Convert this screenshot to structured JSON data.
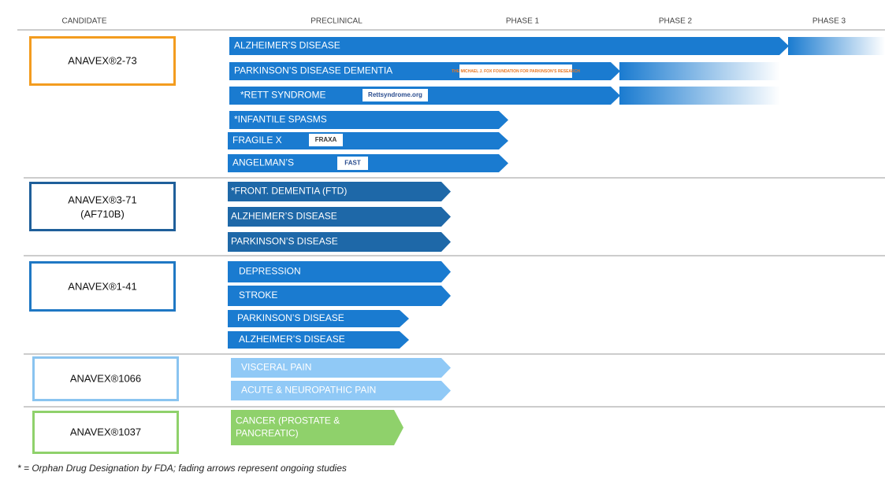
{
  "header": {
    "columns": [
      "CANDIDATE",
      "PRECLINICAL",
      "PHASE 1",
      "PHASE 2",
      "PHASE 3"
    ]
  },
  "candidates": [
    {
      "name": [
        "ANAVEX®2-73"
      ],
      "programs": [
        {
          "label": [
            "ALZHEIMER’S DISEASE"
          ]
        },
        {
          "label": [
            "PARKINSON’S DISEASE DEMENTIA"
          ],
          "partner": "THE MICHAEL J. FOX FOUNDATION FOR PARKINSON’S RESEARCH"
        },
        {
          "label": [
            "*RETT SYNDROME"
          ],
          "partner": "Rettsyndrome.org"
        },
        {
          "label": [
            "*INFANTILE SPASMS"
          ]
        },
        {
          "label": [
            "FRAGILE X"
          ],
          "partner": "FRAXA"
        },
        {
          "label": [
            "ANGELMAN’S"
          ],
          "partner": "FAST"
        }
      ]
    },
    {
      "name": [
        "ANAVEX®3-71",
        "(AF710B)"
      ],
      "programs": [
        {
          "label": [
            "*FRONT. DEMENTIA (FTD)"
          ]
        },
        {
          "label": [
            "ALZHEIMER’S DISEASE"
          ]
        },
        {
          "label": [
            "PARKINSON’S DISEASE"
          ]
        }
      ]
    },
    {
      "name": [
        "ANAVEX®1-41"
      ],
      "programs": [
        {
          "label": [
            "DEPRESSION"
          ]
        },
        {
          "label": [
            "STROKE"
          ]
        },
        {
          "label": [
            "PARKINSON’S DISEASE"
          ]
        },
        {
          "label": [
            "ALZHEIMER’S DISEASE"
          ]
        }
      ]
    },
    {
      "name": [
        "ANAVEX®1066"
      ],
      "programs": [
        {
          "label": [
            "VISCERAL PAIN"
          ]
        },
        {
          "label": [
            "ACUTE & NEUROPATHIC PAIN"
          ]
        }
      ]
    },
    {
      "name": [
        "ANAVEX®1037"
      ],
      "programs": [
        {
          "label": [
            "CANCER (PROSTATE &",
            "PANCREATIC)"
          ]
        }
      ]
    }
  ],
  "footnote": "* = Orphan Drug Designation by FDA; fading arrows represent ongoing studies"
}
